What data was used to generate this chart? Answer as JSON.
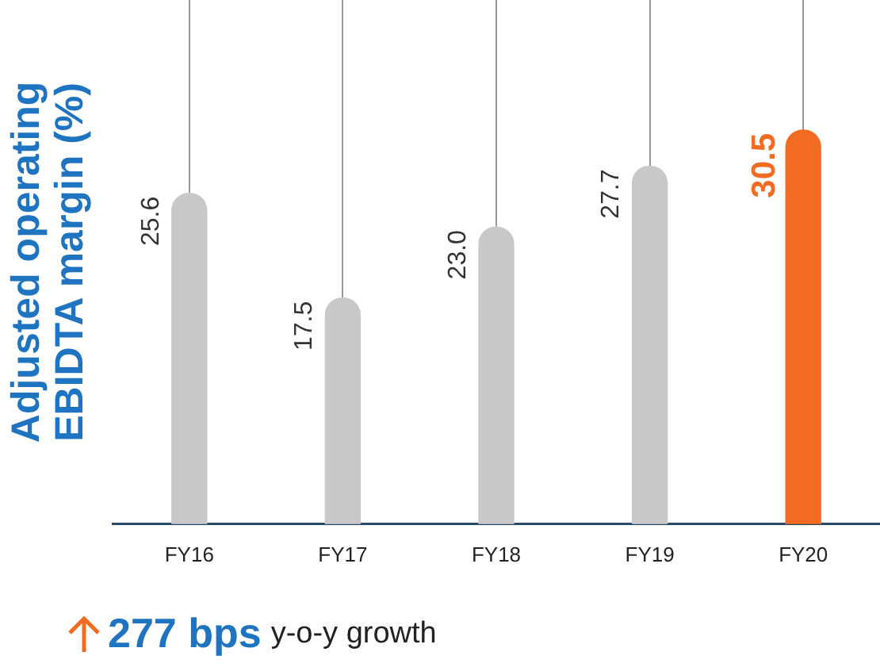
{
  "chart_data": {
    "type": "bar",
    "ylabel": "Adjusted operating EBIDTA margin (%)",
    "categories": [
      "FY16",
      "FY17",
      "FY18",
      "FY19",
      "FY20"
    ],
    "values": [
      25.6,
      17.5,
      23.0,
      27.7,
      30.5
    ],
    "colors": [
      "#c8c8c8",
      "#c8c8c8",
      "#c8c8c8",
      "#c8c8c8",
      "#f26b21"
    ],
    "value_labels": [
      "25.6",
      "17.5",
      "23.0",
      "27.7",
      "30.5"
    ],
    "grid": "x",
    "legend": false,
    "annotations": [
      "277 bps y-o-y growth"
    ]
  }
}
